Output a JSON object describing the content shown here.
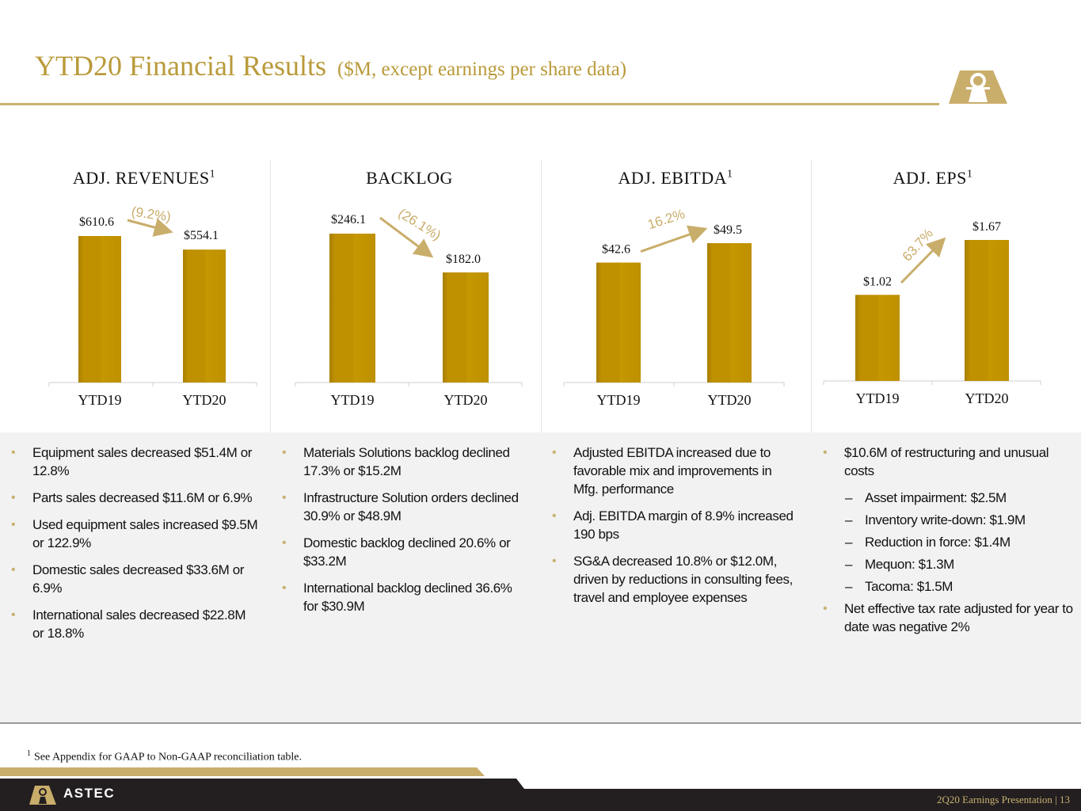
{
  "header": {
    "title": "YTD20 Financial Results",
    "subtitle": "($M, except earnings per share data)"
  },
  "chart_data": [
    {
      "type": "bar",
      "title": "ADJ. REVENUES",
      "title_sup": "1",
      "categories": [
        "YTD19",
        "YTD20"
      ],
      "values": [
        610.6,
        554.1
      ],
      "value_labels": [
        "$610.6",
        "$554.1"
      ],
      "change_label": "(9.2%)",
      "change_direction": "down"
    },
    {
      "type": "bar",
      "title": "BACKLOG",
      "title_sup": "",
      "categories": [
        "YTD19",
        "YTD20"
      ],
      "values": [
        246.1,
        182.0
      ],
      "value_labels": [
        "$246.1",
        "$182.0"
      ],
      "change_label": "(26.1%)",
      "change_direction": "down"
    },
    {
      "type": "bar",
      "title": "ADJ. EBITDA",
      "title_sup": "1",
      "categories": [
        "YTD19",
        "YTD20"
      ],
      "values": [
        42.6,
        49.5
      ],
      "value_labels": [
        "$42.6",
        "$49.5"
      ],
      "change_label": "16.2%",
      "change_direction": "up"
    },
    {
      "type": "bar",
      "title": "ADJ. EPS",
      "title_sup": "1",
      "categories": [
        "YTD19",
        "YTD20"
      ],
      "values": [
        1.02,
        1.67
      ],
      "value_labels": [
        "$1.02",
        "$1.67"
      ],
      "change_label": "63.7%",
      "change_direction": "up"
    }
  ],
  "notes": [
    {
      "bullets": [
        "Equipment sales decreased $51.4M or 12.8%",
        "Parts sales decreased $11.6M or 6.9%",
        "Used equipment sales increased $9.5M or 122.9%",
        "Domestic sales decreased $33.6M or 6.9%",
        "International sales decreased $22.8M or 18.8%"
      ]
    },
    {
      "bullets": [
        "Materials Solutions backlog declined 17.3% or $15.2M",
        "Infrastructure Solution orders declined 30.9% or $48.9M",
        "Domestic backlog declined 20.6% or $33.2M",
        "International backlog declined 36.6% for $30.9M"
      ]
    },
    {
      "bullets": [
        "Adjusted EBITDA increased due to favorable mix and improvements in Mfg. performance",
        "Adj. EBITDA margin of 8.9% increased 190 bps",
        "SG&A decreased 10.8% or $12.0M, driven by reductions in consulting fees, travel and employee expenses"
      ]
    },
    {
      "bullets": [
        "$10.6M of restructuring and unusual costs"
      ],
      "sub_bullets": [
        "Asset impairment: $2.5M",
        "Inventory write-down: $1.9M",
        "Reduction in force: $1.4M",
        "Mequon: $1.3M",
        "Tacoma: $1.5M"
      ],
      "bullets_after": [
        "Net effective tax rate adjusted for year to date was negative 2%"
      ]
    }
  ],
  "footnote": {
    "marker": "1",
    "text": "See Appendix for GAAP to Non-GAAP reconciliation table."
  },
  "footer": {
    "brand": "ASTEC",
    "page_label": "2Q20 Earnings Presentation | 13"
  },
  "colors": {
    "gold_title": "#b99a3a",
    "gold_bar": "#bf9000",
    "gold_arrow": "#c9ad6a",
    "footer_bg": "#231f20"
  },
  "icons": {
    "header_logo": "astec-logo-icon",
    "footer_logo": "astec-logo-icon"
  }
}
